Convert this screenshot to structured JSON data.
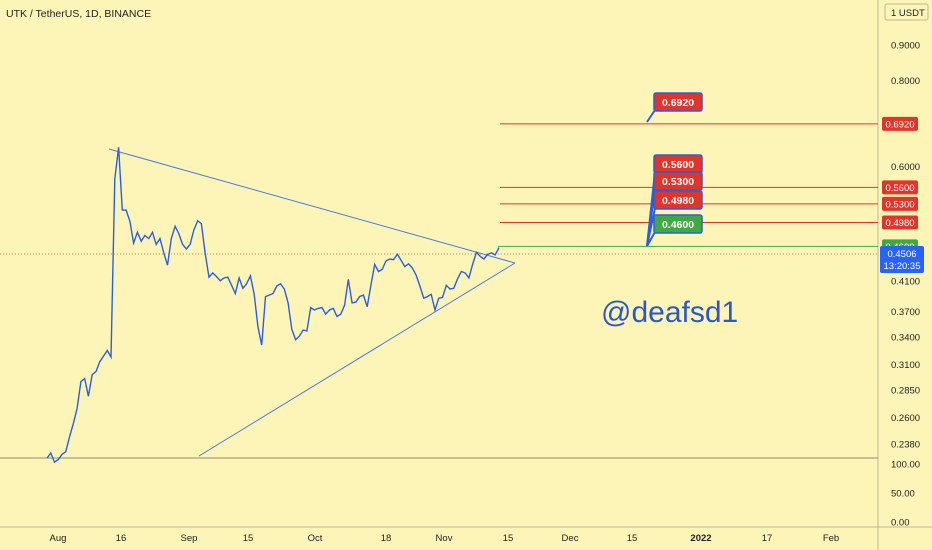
{
  "header": {
    "symbol_title": "UTK / TetherUS, 1D, BINANCE",
    "currency_label": "1 USDT"
  },
  "watermark": "@deafsd1",
  "colors": {
    "background": "#fdf5b8",
    "price_line": "#2a5fe0",
    "trendline": "#4a78e0",
    "resistance": "#e0352b",
    "support": "#3faa3f",
    "current_price_tag": "#2962ff"
  },
  "chart_data": {
    "type": "line",
    "title": "UTK / TetherUS, 1D, BINANCE",
    "x_labels": [
      "Aug",
      "16",
      "Sep",
      "15",
      "Oct",
      "18",
      "Nov",
      "15",
      "Dec",
      "15",
      "2022",
      "17",
      "Feb"
    ],
    "price_axis": {
      "scale": "log",
      "ticks": [
        "0.9000",
        "0.8000",
        "0.6000",
        "0.4100",
        "0.3700",
        "0.3400",
        "0.3100",
        "0.2850",
        "0.2600",
        "0.2380"
      ]
    },
    "volume_axis": {
      "ticks": [
        "100.00",
        "50.00",
        "0.00"
      ]
    },
    "current_price": {
      "value": "0.4506",
      "countdown": "13:20:35"
    },
    "levels": [
      {
        "value": "0.6920",
        "kind": "resistance"
      },
      {
        "value": "0.5600",
        "kind": "resistance"
      },
      {
        "value": "0.5300",
        "kind": "resistance"
      },
      {
        "value": "0.4980",
        "kind": "resistance"
      },
      {
        "value": "0.4600",
        "kind": "support"
      }
    ],
    "price_series": [
      0.227,
      0.231,
      0.224,
      0.226,
      0.23,
      0.232,
      0.244,
      0.255,
      0.268,
      0.293,
      0.296,
      0.279,
      0.3,
      0.303,
      0.313,
      0.319,
      0.325,
      0.318,
      0.576,
      0.64,
      0.519,
      0.519,
      0.5,
      0.465,
      0.482,
      0.468,
      0.477,
      0.472,
      0.482,
      0.463,
      0.472,
      0.45,
      0.432,
      0.472,
      0.492,
      0.48,
      0.463,
      0.456,
      0.463,
      0.486,
      0.501,
      0.496,
      0.449,
      0.415,
      0.421,
      0.416,
      0.41,
      0.414,
      0.415,
      0.404,
      0.393,
      0.414,
      0.4,
      0.406,
      0.417,
      0.392,
      0.352,
      0.331,
      0.389,
      0.391,
      0.393,
      0.403,
      0.406,
      0.399,
      0.381,
      0.349,
      0.337,
      0.341,
      0.348,
      0.347,
      0.375,
      0.372,
      0.374,
      0.375,
      0.367,
      0.372,
      0.374,
      0.364,
      0.367,
      0.378,
      0.412,
      0.381,
      0.382,
      0.389,
      0.391,
      0.376,
      0.404,
      0.433,
      0.423,
      0.426,
      0.438,
      0.441,
      0.44,
      0.448,
      0.439,
      0.43,
      0.434,
      0.428,
      0.418,
      0.403,
      0.387,
      0.389,
      0.392,
      0.372,
      0.387,
      0.388,
      0.404,
      0.399,
      0.4,
      0.413,
      0.423,
      0.421,
      0.414,
      0.433,
      0.451,
      0.445,
      0.441,
      0.448,
      0.45,
      0.447,
      0.458
    ]
  }
}
